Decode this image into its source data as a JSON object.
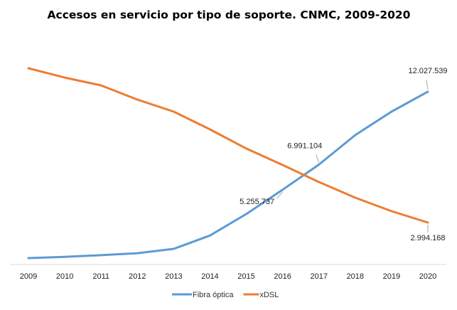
{
  "chart_data": {
    "type": "line",
    "title": "Accesos en servicio por tipo de soporte. CNMC, 2009-2020",
    "xlabel": "",
    "ylabel": "",
    "categories": [
      "2009",
      "2010",
      "2011",
      "2012",
      "2013",
      "2014",
      "2015",
      "2016",
      "2017",
      "2018",
      "2019",
      "2020"
    ],
    "ylim": [
      0,
      14000000
    ],
    "grid": false,
    "legend_position": "bottom",
    "series": [
      {
        "name": "Fibra óptica",
        "color": "#5B9BD5",
        "values": [
          540000,
          630000,
          740000,
          880000,
          1180000,
          2100000,
          3580000,
          5255737,
          6991104,
          9030000,
          10650000,
          12027539
        ]
      },
      {
        "name": "xDSL",
        "color": "#ED7D31",
        "values": [
          13640000,
          13000000,
          12460000,
          11480000,
          10650000,
          9420000,
          8100000,
          6970000,
          5790000,
          4710000,
          3780000,
          2994168
        ]
      }
    ],
    "annotations": [
      {
        "series": "Fibra óptica",
        "category": "2016",
        "text": "5.255.737",
        "placement": "below-left"
      },
      {
        "series": "Fibra óptica",
        "category": "2017",
        "text": "6.991.104",
        "placement": "above-left"
      },
      {
        "series": "Fibra óptica",
        "category": "2020",
        "text": "12.027.539",
        "placement": "above"
      },
      {
        "series": "xDSL",
        "category": "2020",
        "text": "2.994.168",
        "placement": "below"
      }
    ]
  }
}
